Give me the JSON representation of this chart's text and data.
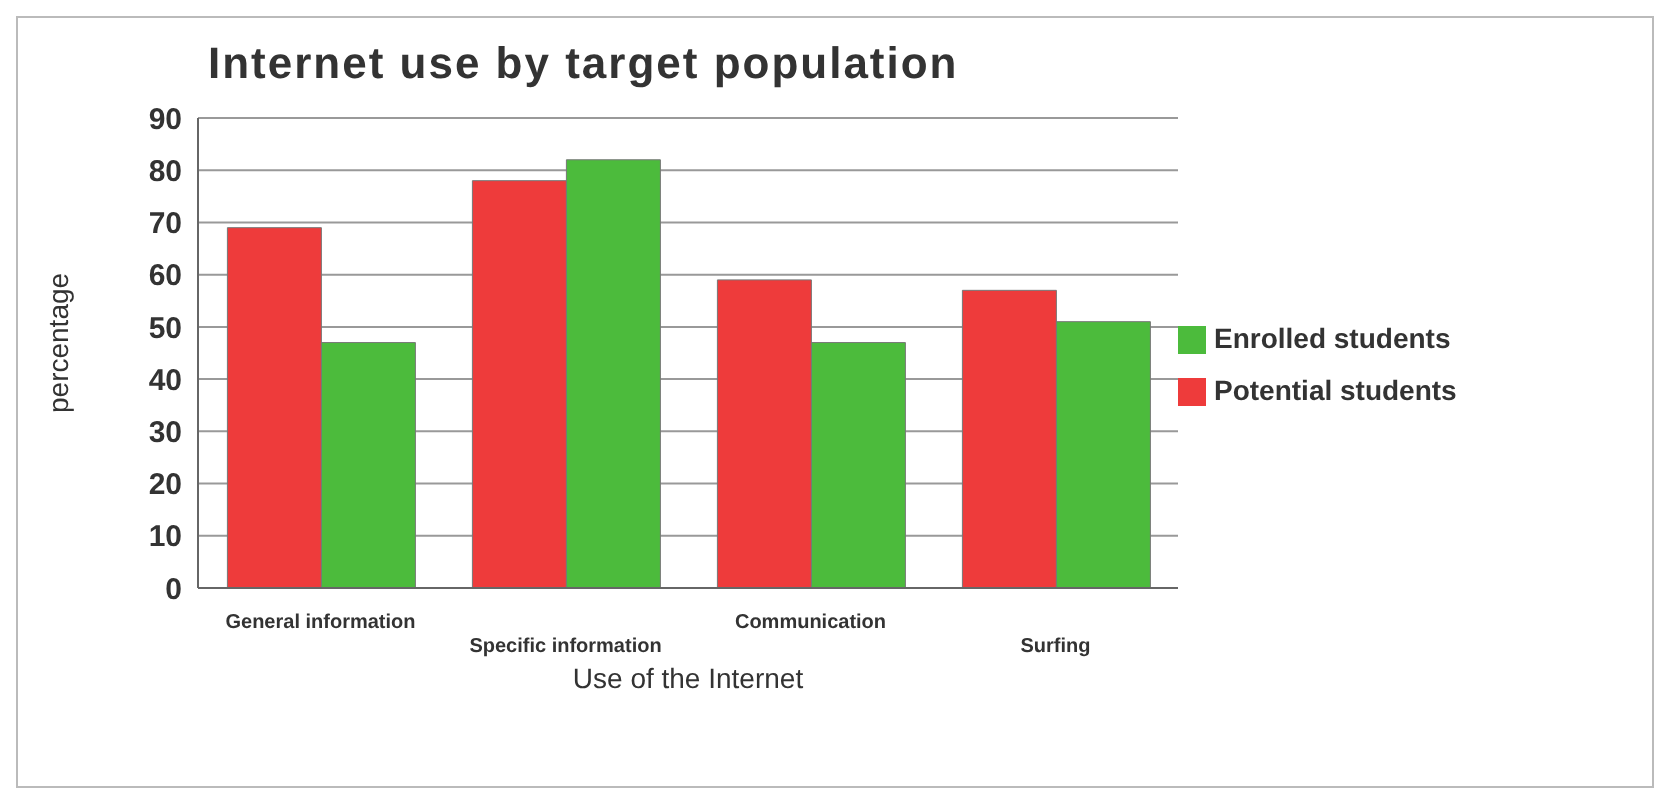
{
  "chart_data": {
    "type": "bar",
    "title": "Internet use by target population",
    "xlabel": "Use of the Internet",
    "ylabel": "percentage",
    "categories": [
      "General information",
      "Specific information",
      "Communication",
      "Surfing"
    ],
    "series": [
      {
        "name": "Potential students",
        "color": "#ee3b3b",
        "values": [
          69,
          78,
          59,
          57
        ]
      },
      {
        "name": "Enrolled students",
        "color": "#4cbb3c",
        "values": [
          47,
          82,
          47,
          51
        ]
      }
    ],
    "ylim": [
      0,
      90
    ],
    "yticks": [
      0,
      10,
      20,
      30,
      40,
      50,
      60,
      70,
      80,
      90
    ],
    "grid": "y",
    "legend": "right"
  }
}
